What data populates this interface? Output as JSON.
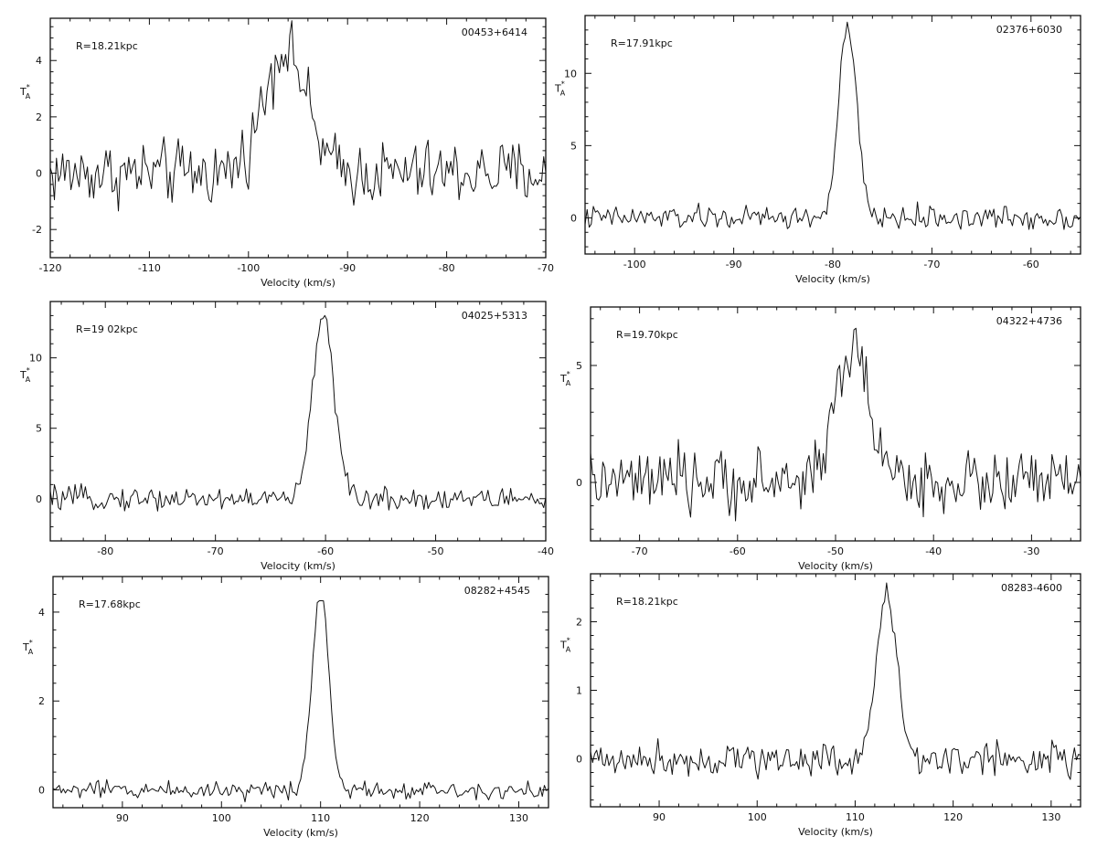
{
  "chart_data": [
    {
      "type": "line",
      "source": "00453+6414",
      "r_label": "R=18.21kpc",
      "xlabel": "Velocity (km/s)",
      "ylabel": "T*A",
      "xlim": [
        -120,
        -70
      ],
      "ylim": [
        -3,
        5.5
      ],
      "xticks": [
        -120,
        -110,
        -100,
        -90,
        -80,
        -70
      ],
      "yticks": [
        -2,
        0,
        2,
        4
      ],
      "line": {
        "center": -96.3,
        "sigma": 2.1,
        "peak": 4.5,
        "noise": 0.85
      },
      "series": [
        {
          "x": [
            -120,
            -100,
            -98,
            -97.5,
            -96.5,
            -95.5,
            -94,
            -92,
            -70
          ],
          "y": [
            0,
            1.5,
            4.2,
            5.3,
            4.7,
            4.6,
            1.0,
            0,
            0
          ]
        }
      ]
    },
    {
      "type": "line",
      "source": "02376+6030",
      "r_label": "R=17.91kpc",
      "xlabel": "Velocity (km/s)",
      "ylabel": "T*A",
      "xlim": [
        -105,
        -55
      ],
      "ylim": [
        -2.5,
        14
      ],
      "xticks": [
        -100,
        -90,
        -80,
        -70,
        -60
      ],
      "yticks": [
        0,
        5,
        10
      ],
      "line": {
        "center": -78.5,
        "sigma": 0.9,
        "peak": 13.2,
        "noise": 0.6
      },
      "series": [
        {
          "x": [
            -105,
            -80,
            -79,
            -78.6,
            -78,
            -77,
            -55
          ],
          "y": [
            0,
            2,
            11,
            13.5,
            11,
            2,
            0
          ]
        }
      ]
    },
    {
      "type": "line",
      "source": "04025+5313",
      "r_label": "R=19 02kpc",
      "xlabel": "Velocity (km/s)",
      "ylabel": "T*A",
      "xlim": [
        -85,
        -40
      ],
      "ylim": [
        -3,
        14
      ],
      "xticks": [
        -80,
        -70,
        -60,
        -50,
        -40
      ],
      "yticks": [
        0,
        5,
        10
      ],
      "line": {
        "center": -60.2,
        "sigma": 0.95,
        "peak": 13.3,
        "noise": 0.6
      },
      "series": [
        {
          "x": [
            -85,
            -62,
            -61,
            -60.2,
            -59.5,
            -58.5,
            -40
          ],
          "y": [
            0,
            1.5,
            10,
            13.5,
            12,
            2,
            0
          ]
        }
      ]
    },
    {
      "type": "line",
      "source": "04322+4736",
      "r_label": "R=19.70kpc",
      "xlabel": "Velocity (km/s)",
      "ylabel": "T*A",
      "xlim": [
        -75,
        -25
      ],
      "ylim": [
        -2.5,
        7.5
      ],
      "xticks": [
        -70,
        -60,
        -50,
        -40,
        -30
      ],
      "yticks": [
        0,
        5
      ],
      "line": {
        "center": -48.3,
        "sigma": 1.8,
        "peak": 5.6,
        "noise": 1.0
      },
      "series": [
        {
          "x": [
            -75,
            -52,
            -49.5,
            -48,
            -47,
            -45.5,
            -25
          ],
          "y": [
            0,
            2.5,
            6.5,
            6.8,
            7.3,
            3,
            0
          ]
        }
      ]
    },
    {
      "type": "line",
      "source": "08282+4545",
      "r_label": "R=17.68kpc",
      "xlabel": "Velocity (km/s)",
      "ylabel": "T*A",
      "xlim": [
        83,
        133
      ],
      "ylim": [
        -0.4,
        4.8
      ],
      "xticks": [
        90,
        100,
        110,
        120,
        130
      ],
      "yticks": [
        0,
        2,
        4
      ],
      "line": {
        "center": 110,
        "sigma": 0.85,
        "peak": 4.45,
        "noise": 0.15
      },
      "series": [
        {
          "x": [
            83,
            108,
            109,
            110,
            111,
            112,
            133
          ],
          "y": [
            0.1,
            0.3,
            2.5,
            4.6,
            2.5,
            0.4,
            0.1
          ]
        }
      ]
    },
    {
      "type": "line",
      "source": "08283-4600",
      "r_label": "R=18.21kpc",
      "xlabel": "Velocity (km/s)",
      "ylabel": "T*A",
      "xlim": [
        83,
        133
      ],
      "ylim": [
        -0.7,
        2.7
      ],
      "xticks": [
        90,
        100,
        110,
        120,
        130
      ],
      "yticks": [
        0,
        1,
        2
      ],
      "line": {
        "center": 113.2,
        "sigma": 1.05,
        "peak": 2.35,
        "noise": 0.18
      },
      "series": [
        {
          "x": [
            83,
            111,
            112,
            113.3,
            114.3,
            115.5,
            133
          ],
          "y": [
            0,
            0.3,
            1.8,
            2.5,
            1.9,
            0.3,
            0
          ]
        }
      ]
    }
  ]
}
